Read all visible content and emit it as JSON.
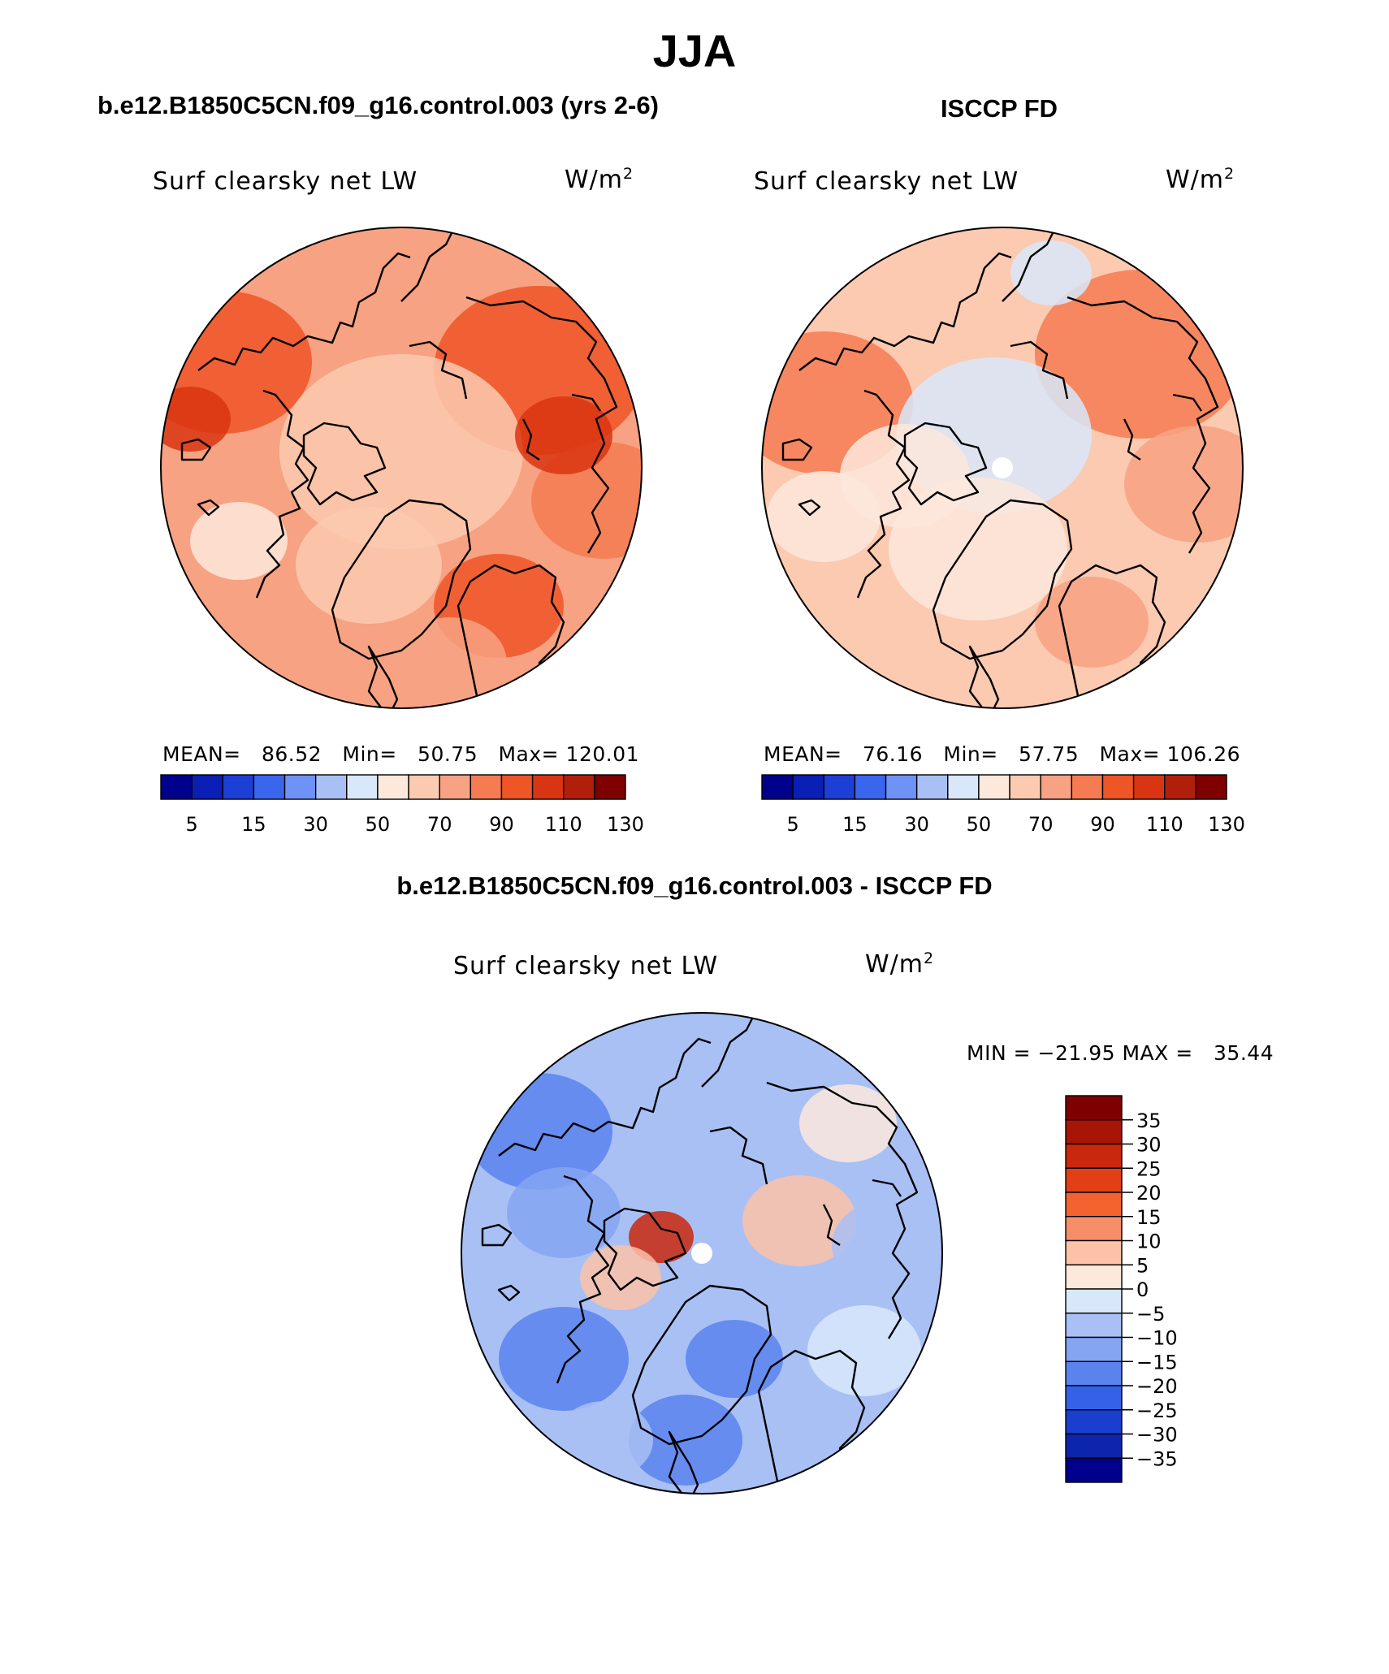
{
  "title": "JJA",
  "panels": {
    "model": {
      "title": "b.e12.B1850C5CN.f09_g16.control.003 (yrs 2-6)",
      "variable": "Surf clearsky net LW",
      "units": "W/m",
      "units_exp": "2",
      "mean_label": "MEAN=",
      "mean": "86.52",
      "min_label": "Min=",
      "min": "50.75",
      "max_label": "Max=",
      "max": "120.01"
    },
    "obs": {
      "title": "ISCCP FD",
      "variable": "Surf clearsky net LW",
      "units": "W/m",
      "units_exp": "2",
      "mean_label": "MEAN=",
      "mean": "76.16",
      "min_label": "Min=",
      "min": "57.75",
      "max_label": "Max=",
      "max": "106.26"
    },
    "diff": {
      "title": "b.e12.B1850C5CN.f09_g16.control.003 - ISCCP FD",
      "variable": "Surf clearsky net LW",
      "units": "W/m",
      "units_exp": "2",
      "min_label": "MIN =",
      "min": "−21.95",
      "max_label": "MAX =",
      "max": "35.44"
    }
  },
  "chart_data": [
    {
      "type": "heatmap",
      "projection": "north polar stereographic",
      "title": "b.e12.B1850C5CN.f09_g16.control.003 (yrs 2-6)",
      "variable": "Surf clearsky net LW",
      "units": "W/m2",
      "mean": 86.52,
      "min": 50.75,
      "max": 120.01,
      "colorbar_ticks": [
        "5",
        "15",
        "30",
        "50",
        "70",
        "90",
        "110",
        "130"
      ],
      "colorbar_colors": [
        "#00008c",
        "#0a1fb5",
        "#1c3fd6",
        "#3a66ee",
        "#6e92f6",
        "#a9c0f5",
        "#d8e8fa",
        "#fde8dc",
        "#fbcab0",
        "#f7a282",
        "#f47b52",
        "#ee5527",
        "#d93512",
        "#b01f09",
        "#7f0000"
      ]
    },
    {
      "type": "heatmap",
      "projection": "north polar stereographic",
      "title": "ISCCP FD",
      "variable": "Surf clearsky net LW",
      "units": "W/m2",
      "mean": 76.16,
      "min": 57.75,
      "max": 106.26,
      "colorbar_ticks": [
        "5",
        "15",
        "30",
        "50",
        "70",
        "90",
        "110",
        "130"
      ],
      "colorbar_colors": [
        "#00008c",
        "#0a1fb5",
        "#1c3fd6",
        "#3a66ee",
        "#6e92f6",
        "#a9c0f5",
        "#d8e8fa",
        "#fde8dc",
        "#fbcab0",
        "#f7a282",
        "#f47b52",
        "#ee5527",
        "#d93512",
        "#b01f09",
        "#7f0000"
      ]
    },
    {
      "type": "heatmap",
      "projection": "north polar stereographic",
      "title": "b.e12.B1850C5CN.f09_g16.control.003 - ISCCP FD",
      "variable": "Surf clearsky net LW",
      "units": "W/m2",
      "min": -21.95,
      "max": 35.44,
      "colorbar_ticks": [
        "35",
        "30",
        "25",
        "20",
        "15",
        "10",
        "5",
        "0",
        "−5",
        "−10",
        "−15",
        "−20",
        "−25",
        "−30",
        "−35"
      ],
      "colorbar_colors": [
        "#7f0000",
        "#a61506",
        "#c9280d",
        "#e23f17",
        "#f36330",
        "#f68f68",
        "#fbc2a8",
        "#fde8dc",
        "#d8e8fa",
        "#a9c0f5",
        "#85a5f2",
        "#5b83ee",
        "#3560e8",
        "#1a3fcf",
        "#0d25ad",
        "#00008c"
      ]
    }
  ]
}
